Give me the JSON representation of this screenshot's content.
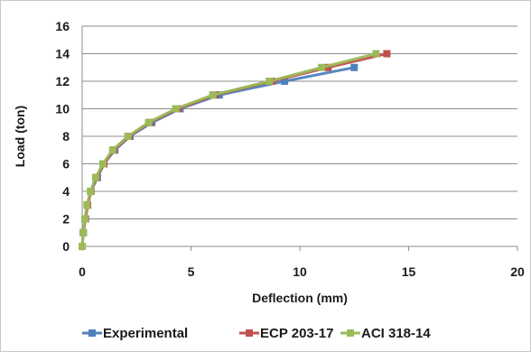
{
  "chart_data": {
    "type": "line",
    "title": "",
    "xlabel": "Deflection (mm)",
    "ylabel": "Load (ton)",
    "xlim": [
      0,
      20
    ],
    "ylim": [
      0,
      16
    ],
    "xticks": [
      0,
      5,
      10,
      15,
      20
    ],
    "yticks": [
      0,
      2,
      4,
      6,
      8,
      10,
      12,
      14,
      16
    ],
    "grid": "horizontal",
    "legend_position": "bottom",
    "series": [
      {
        "name": "Experimental",
        "color": "#4f81bd",
        "marker": "square",
        "points": [
          [
            0,
            0
          ],
          [
            0.05,
            1
          ],
          [
            0.15,
            2
          ],
          [
            0.25,
            3
          ],
          [
            0.4,
            4
          ],
          [
            0.7,
            5
          ],
          [
            1.0,
            6
          ],
          [
            1.5,
            7
          ],
          [
            2.2,
            8
          ],
          [
            3.2,
            9
          ],
          [
            4.5,
            10
          ],
          [
            6.3,
            11
          ],
          [
            9.3,
            12
          ],
          [
            12.5,
            13
          ]
        ]
      },
      {
        "name": "ECP 203-17",
        "color": "#c0504d",
        "marker": "square",
        "points": [
          [
            0,
            0
          ],
          [
            0.05,
            1
          ],
          [
            0.15,
            2
          ],
          [
            0.25,
            3
          ],
          [
            0.4,
            4
          ],
          [
            0.65,
            5
          ],
          [
            1.0,
            6
          ],
          [
            1.45,
            7
          ],
          [
            2.15,
            8
          ],
          [
            3.1,
            9
          ],
          [
            4.4,
            10
          ],
          [
            6.1,
            11
          ],
          [
            8.7,
            12
          ],
          [
            11.3,
            13
          ],
          [
            14.0,
            14
          ]
        ]
      },
      {
        "name": "ACI 318-14",
        "color": "#9bbb59",
        "marker": "square",
        "points": [
          [
            0,
            0
          ],
          [
            0.05,
            1
          ],
          [
            0.12,
            2
          ],
          [
            0.22,
            3
          ],
          [
            0.38,
            4
          ],
          [
            0.62,
            5
          ],
          [
            0.95,
            6
          ],
          [
            1.4,
            7
          ],
          [
            2.1,
            8
          ],
          [
            3.05,
            9
          ],
          [
            4.3,
            10
          ],
          [
            6.0,
            11
          ],
          [
            8.6,
            12
          ],
          [
            11.0,
            13
          ],
          [
            13.5,
            14
          ]
        ]
      }
    ]
  }
}
